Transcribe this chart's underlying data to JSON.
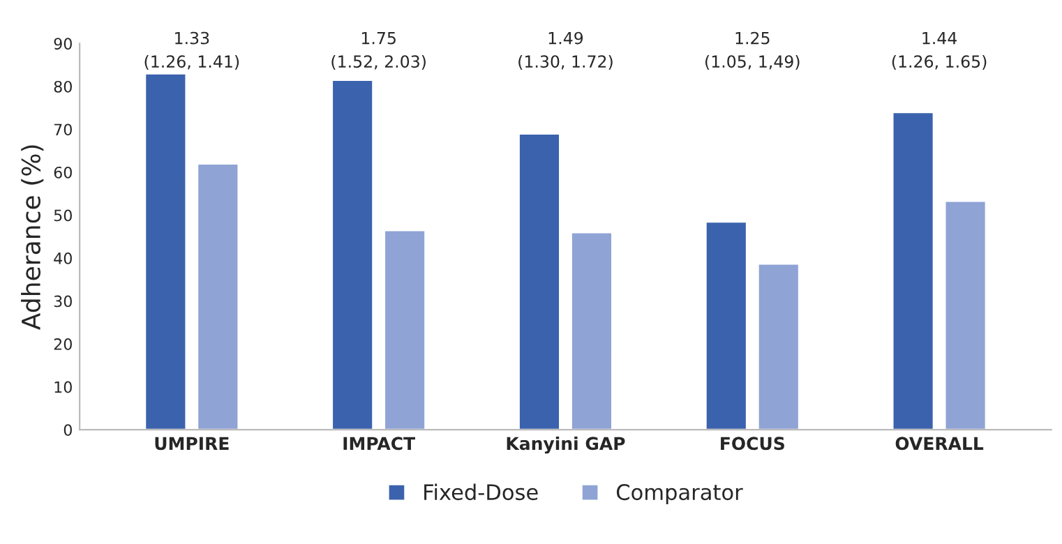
{
  "chart_data": {
    "type": "bar",
    "ylabel": "Adherance (%)",
    "categories": [
      "UMPIRE",
      "IMPACT",
      "Kanyini GAP",
      "FOCUS",
      "OVERALL"
    ],
    "series": [
      {
        "name": "Fixed-Dose",
        "color": "#3b62ad",
        "values": [
          83,
          81.5,
          69,
          48.5,
          74
        ]
      },
      {
        "name": "Comparator",
        "color": "#8fa3d5",
        "values": [
          62,
          46.5,
          46,
          38.7,
          53.3
        ]
      }
    ],
    "ylim": [
      0,
      90
    ],
    "yticks": [
      0,
      10,
      20,
      30,
      40,
      50,
      60,
      70,
      80,
      90
    ],
    "annotations": [
      "1.33\n(1.26, 1.41)",
      "1.75\n(1.52, 2.03)",
      "1.49\n(1.30, 1.72)",
      "1.25\n(1.05, 1,49)",
      "1.44\n(1.26, 1.65)"
    ],
    "grid": false,
    "legend": "bottom"
  }
}
